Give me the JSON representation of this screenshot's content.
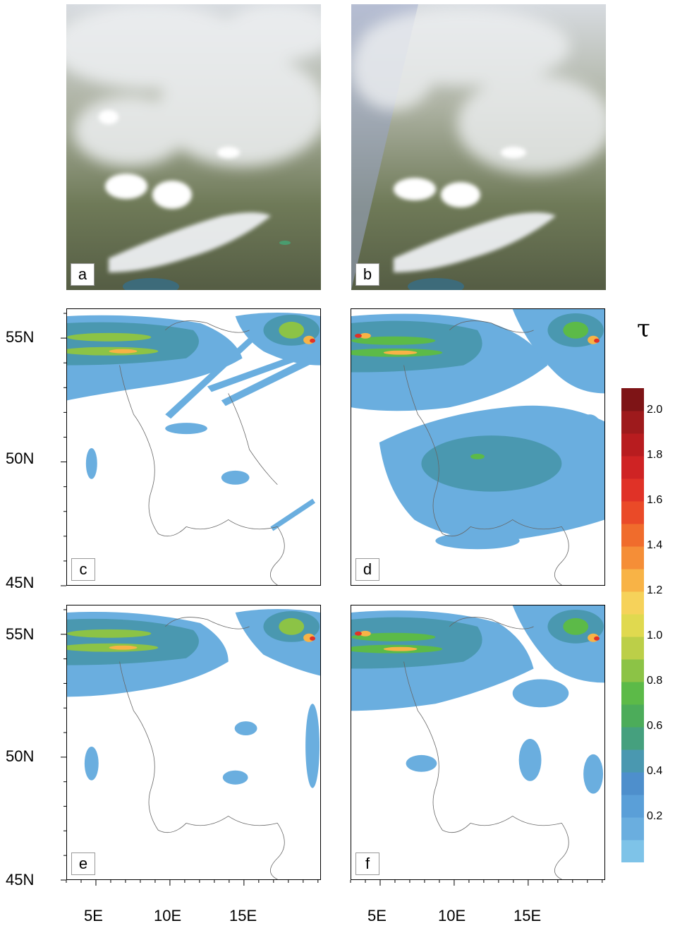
{
  "panels": [
    {
      "id": "a",
      "label": "a",
      "kind": "satellite"
    },
    {
      "id": "b",
      "label": "b",
      "kind": "satellite"
    },
    {
      "id": "c",
      "label": "c",
      "kind": "map"
    },
    {
      "id": "d",
      "label": "d",
      "kind": "map"
    },
    {
      "id": "e",
      "label": "e",
      "kind": "map"
    },
    {
      "id": "f",
      "label": "f",
      "kind": "map"
    }
  ],
  "axes": {
    "lat_labels": [
      "55N",
      "50N",
      "45N"
    ],
    "lon_labels": [
      "5E",
      "10E",
      "15E"
    ],
    "lat_range": [
      44.8,
      56.0
    ],
    "lon_range": [
      3.0,
      20.2
    ]
  },
  "colorbar": {
    "title": "τ",
    "tick_labels": [
      "0.2",
      "0.4",
      "0.6",
      "0.8",
      "1.0",
      "1.2",
      "1.4",
      "1.6",
      "1.8",
      "2.0"
    ],
    "colors": [
      "#7ec3e8",
      "#6aaedf",
      "#5a9fd8",
      "#4e8fcc",
      "#4a98b0",
      "#45a07e",
      "#4cac5a",
      "#5cba48",
      "#8cc346",
      "#bccf48",
      "#e0d94f",
      "#f6d25a",
      "#f8b346",
      "#f58e37",
      "#f06c2c",
      "#ea4a28",
      "#e03227",
      "#cf2324",
      "#b81c1f",
      "#9e1a1c",
      "#7e1416"
    ]
  }
}
